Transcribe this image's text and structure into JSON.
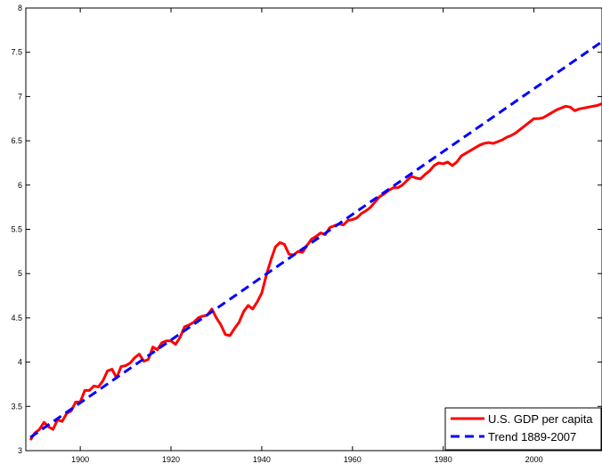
{
  "chart_data": {
    "type": "line",
    "title": "",
    "xlabel": "",
    "ylabel": "",
    "xlim": [
      1888,
      2015
    ],
    "ylim": [
      3,
      8
    ],
    "grid": false,
    "legend_position": "bottom-right",
    "x_ticks": [
      "1900",
      "1920",
      "1940",
      "1960",
      "1980",
      "2000"
    ],
    "y_ticks": [
      "3",
      "3.5",
      "4",
      "4.5",
      "5",
      "5.5",
      "6",
      "6.5",
      "7",
      "7.5",
      "8"
    ],
    "series": [
      {
        "name": "U.S. GDP per capita",
        "color": "#ff0000",
        "style": "solid",
        "x": [
          1889,
          1890,
          1891,
          1892,
          1893,
          1894,
          1895,
          1896,
          1897,
          1898,
          1899,
          1900,
          1901,
          1902,
          1903,
          1904,
          1905,
          1906,
          1907,
          1908,
          1909,
          1910,
          1911,
          1912,
          1913,
          1914,
          1915,
          1916,
          1917,
          1918,
          1919,
          1920,
          1921,
          1922,
          1923,
          1924,
          1925,
          1926,
          1927,
          1928,
          1929,
          1930,
          1931,
          1932,
          1933,
          1934,
          1935,
          1936,
          1937,
          1938,
          1939,
          1940,
          1941,
          1942,
          1943,
          1944,
          1945,
          1946,
          1947,
          1948,
          1949,
          1950,
          1951,
          1952,
          1953,
          1954,
          1955,
          1956,
          1957,
          1958,
          1959,
          1960,
          1961,
          1962,
          1963,
          1964,
          1965,
          1966,
          1967,
          1968,
          1969,
          1970,
          1971,
          1972,
          1973,
          1974,
          1975,
          1976,
          1977,
          1978,
          1979,
          1980,
          1981,
          1982,
          1983,
          1984,
          1985,
          1986,
          1987,
          1988,
          1989,
          1990,
          1991,
          1992,
          1993,
          1994,
          1995,
          1996,
          1997,
          1998,
          1999,
          2000,
          2001,
          2002,
          2003,
          2004,
          2005,
          2006,
          2007,
          2008,
          2009,
          2010,
          2011,
          2012,
          2013,
          2014,
          2015
        ],
        "values": [
          3.12,
          3.2,
          3.24,
          3.32,
          3.27,
          3.24,
          3.35,
          3.33,
          3.42,
          3.45,
          3.55,
          3.55,
          3.68,
          3.68,
          3.73,
          3.72,
          3.79,
          3.9,
          3.92,
          3.82,
          3.95,
          3.96,
          3.99,
          4.05,
          4.09,
          4.01,
          4.03,
          4.17,
          4.14,
          4.22,
          4.24,
          4.24,
          4.2,
          4.28,
          4.4,
          4.42,
          4.45,
          4.5,
          4.52,
          4.53,
          4.6,
          4.5,
          4.42,
          4.31,
          4.3,
          4.38,
          4.45,
          4.57,
          4.64,
          4.6,
          4.68,
          4.78,
          4.98,
          5.15,
          5.3,
          5.35,
          5.33,
          5.22,
          5.21,
          5.25,
          5.24,
          5.32,
          5.39,
          5.42,
          5.46,
          5.44,
          5.52,
          5.54,
          5.56,
          5.55,
          5.6,
          5.61,
          5.63,
          5.68,
          5.71,
          5.75,
          5.81,
          5.87,
          5.9,
          5.94,
          5.97,
          5.97,
          6.0,
          6.05,
          6.1,
          6.08,
          6.07,
          6.12,
          6.16,
          6.22,
          6.25,
          6.24,
          6.26,
          6.22,
          6.26,
          6.33,
          6.36,
          6.39,
          6.42,
          6.45,
          6.47,
          6.48,
          6.47,
          6.49,
          6.51,
          6.54,
          6.56,
          6.59,
          6.63,
          6.67,
          6.71,
          6.75,
          6.75,
          6.76,
          6.79,
          6.82,
          6.85,
          6.87,
          6.89,
          6.88,
          6.84,
          6.86,
          6.87,
          6.88,
          6.89,
          6.9,
          6.92
        ],
        "display_note_unused": ""
      },
      {
        "name": "Trend 1889-2007",
        "color": "#0000ff",
        "style": "dashed",
        "x": [
          1889,
          2015
        ],
        "values": [
          3.15,
          7.62
        ]
      }
    ]
  }
}
